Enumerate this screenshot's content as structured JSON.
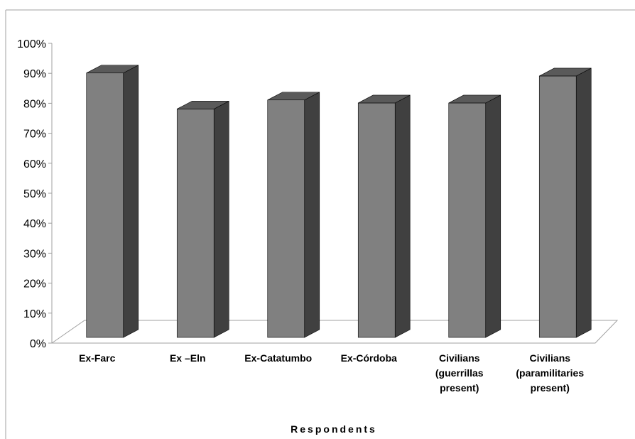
{
  "chart_data": {
    "type": "bar",
    "style": "3d-column",
    "categories": [
      [
        "Ex-Farc"
      ],
      [
        "Ex –Eln"
      ],
      [
        "Ex-Catatumbo"
      ],
      [
        "Ex-Córdoba"
      ],
      [
        "Civilians",
        "(guerrillas",
        "present)"
      ],
      [
        "Civilians",
        "(paramilitaries",
        "present)"
      ]
    ],
    "values": [
      92,
      80,
      83,
      82,
      82,
      91
    ],
    "ylim": [
      0,
      100
    ],
    "ytick_step": 10,
    "ytick_labels": [
      "0%",
      "10%",
      "20%",
      "30%",
      "40%",
      "50%",
      "60%",
      "70%",
      "80%",
      "90%",
      "100%"
    ],
    "xlabel": "Respondents",
    "ylabel": "",
    "title": "",
    "grid": false,
    "legend": "none",
    "colors": {
      "bar_front": "#808080",
      "bar_side": "#404040",
      "bar_top": "#5a5a5a",
      "edge": "#000000",
      "frame": "#a0a0a0"
    }
  }
}
